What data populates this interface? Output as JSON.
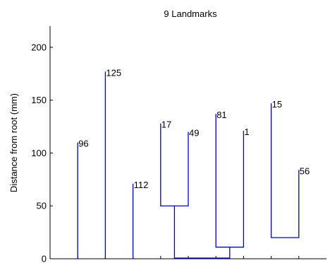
{
  "chart_data": {
    "type": "dendrogram",
    "title": "9 Landmarks",
    "ylabel": "Distance from root (mm)",
    "xlabel": "",
    "ylim": [
      0,
      220
    ],
    "yticks": [
      0,
      50,
      100,
      150,
      200
    ],
    "line_color": "#0000cc",
    "leaves": [
      {
        "label": "96",
        "height": 110
      },
      {
        "label": "125",
        "height": 177
      },
      {
        "label": "112",
        "height": 71
      },
      {
        "label": "17",
        "height": 128
      },
      {
        "label": "49",
        "height": 120
      },
      {
        "label": "81",
        "height": 137
      },
      {
        "label": "1",
        "height": 121
      },
      {
        "label": "15",
        "height": 147
      },
      {
        "label": "56",
        "height": 84
      }
    ],
    "merges": [
      {
        "left": 3,
        "right": 4,
        "height": 50
      },
      {
        "left": 5,
        "right": 6,
        "height": 11
      },
      {
        "left": 7,
        "right": 8,
        "height": 20
      }
    ],
    "root_links": [
      {
        "node": 9,
        "height": 0
      },
      {
        "node": 10,
        "height": 0
      }
    ]
  }
}
